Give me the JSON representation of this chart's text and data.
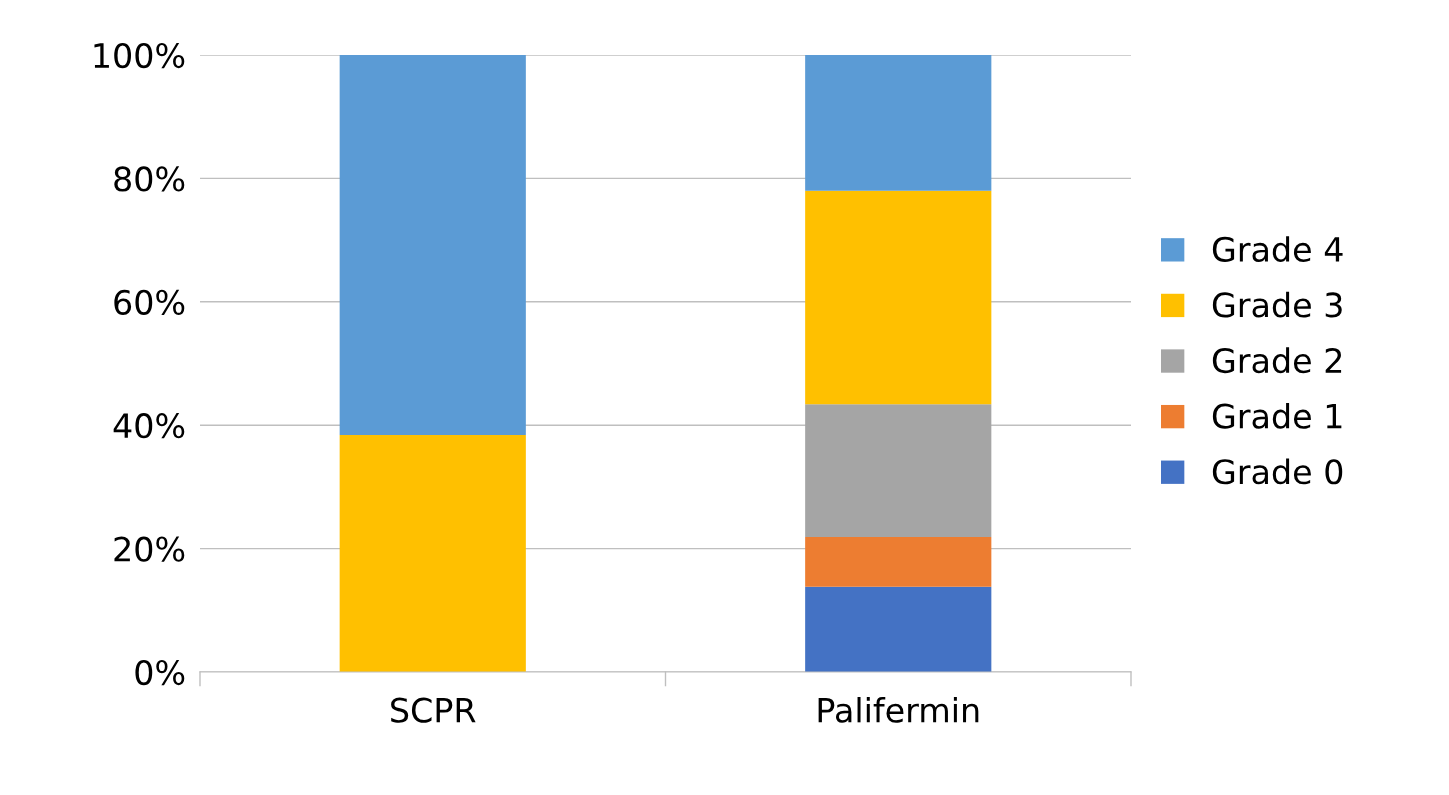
{
  "chart_data": {
    "type": "bar",
    "stacked": true,
    "categories": [
      "SCPR",
      "Palifermin"
    ],
    "series": [
      {
        "name": "Grade 0",
        "color": "#4472c4",
        "values": [
          0,
          13.8
        ]
      },
      {
        "name": "Grade 1",
        "color": "#ed7d31",
        "values": [
          0,
          8.1
        ]
      },
      {
        "name": "Grade 2",
        "color": "#a5a5a5",
        "values": [
          0,
          21.5
        ]
      },
      {
        "name": "Grade 3",
        "color": "#ffc000",
        "values": [
          38.4,
          34.6
        ]
      },
      {
        "name": "Grade 4",
        "color": "#5b9bd5",
        "values": [
          61.6,
          22.0
        ]
      }
    ],
    "ylim": [
      0,
      100
    ],
    "yticks": [
      {
        "value": 0,
        "label": "0%"
      },
      {
        "value": 20,
        "label": "20%"
      },
      {
        "value": 40,
        "label": "40%"
      },
      {
        "value": 60,
        "label": "60%"
      },
      {
        "value": 80,
        "label": "80%"
      },
      {
        "value": 100,
        "label": "100%"
      }
    ],
    "grid": "y",
    "legend": "right"
  }
}
